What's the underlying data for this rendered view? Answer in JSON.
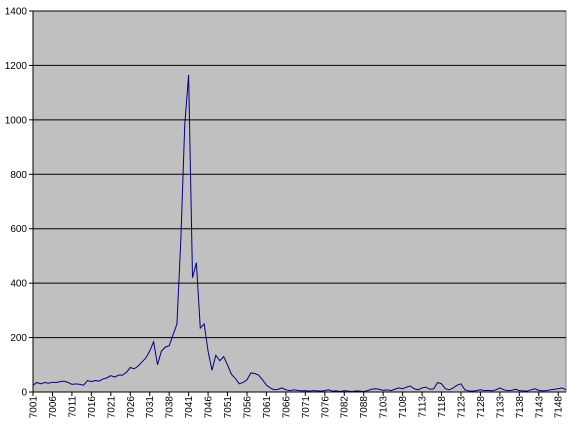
{
  "chart_data": {
    "type": "line",
    "categories": [
      "7001",
      null,
      null,
      null,
      null,
      "7006",
      null,
      null,
      null,
      null,
      "7011",
      null,
      null,
      null,
      null,
      "7016",
      null,
      null,
      null,
      null,
      "7021",
      null,
      null,
      null,
      null,
      "7026",
      null,
      null,
      null,
      null,
      "7031",
      null,
      null,
      null,
      null,
      "7038",
      null,
      null,
      null,
      null,
      "7041",
      null,
      null,
      null,
      null,
      "7046",
      null,
      null,
      null,
      null,
      "7051",
      null,
      null,
      null,
      null,
      "7056",
      null,
      null,
      null,
      null,
      "7061",
      null,
      null,
      null,
      null,
      "7066",
      null,
      null,
      null,
      null,
      "7071",
      null,
      null,
      null,
      null,
      "7076",
      null,
      null,
      null,
      null,
      "7082",
      null,
      null,
      null,
      null,
      "7088",
      null,
      null,
      null,
      null,
      "7103",
      null,
      null,
      null,
      null,
      "7108",
      null,
      null,
      null,
      null,
      "7113",
      null,
      null,
      null,
      null,
      "7118",
      null,
      null,
      null,
      null,
      "7123",
      null,
      null,
      null,
      null,
      "7128",
      null,
      null,
      null,
      null,
      "7133",
      null,
      null,
      null,
      null,
      "7138",
      null,
      null,
      null,
      null,
      "7143",
      null,
      null,
      null,
      null,
      "7148",
      null,
      null
    ],
    "values": [
      25,
      35,
      30,
      35,
      32,
      36,
      35,
      38,
      40,
      35,
      28,
      30,
      28,
      25,
      42,
      38,
      42,
      40,
      48,
      52,
      60,
      55,
      62,
      62,
      72,
      90,
      85,
      95,
      110,
      125,
      150,
      185,
      100,
      150,
      165,
      170,
      210,
      250,
      560,
      980,
      1165,
      420,
      475,
      235,
      250,
      150,
      80,
      135,
      115,
      130,
      100,
      65,
      50,
      30,
      35,
      45,
      70,
      68,
      62,
      45,
      25,
      15,
      8,
      10,
      15,
      8,
      5,
      8,
      6,
      4,
      5,
      3,
      5,
      4,
      3,
      5,
      8,
      3,
      4,
      2,
      5,
      3,
      2,
      4,
      3,
      2,
      5,
      10,
      12,
      10,
      6,
      8,
      5,
      10,
      15,
      12,
      18,
      22,
      12,
      8,
      15,
      18,
      10,
      12,
      35,
      30,
      12,
      8,
      15,
      25,
      30,
      8,
      4,
      3,
      5,
      8,
      5,
      6,
      4,
      8,
      15,
      8,
      5,
      6,
      10,
      5,
      4,
      3,
      8,
      12,
      6,
      4,
      5,
      8,
      10,
      12,
      15,
      8
    ],
    "color": "#000080",
    "plot_background": "#c0c0c0",
    "ylim": [
      0,
      1400
    ],
    "yticks": [
      0,
      200,
      400,
      600,
      800,
      1000,
      1200,
      1400
    ],
    "grid": true
  }
}
